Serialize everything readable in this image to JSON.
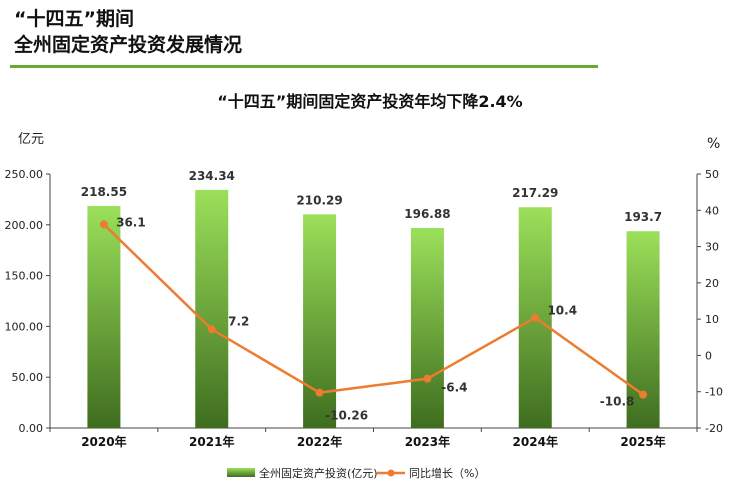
{
  "header": {
    "line1": "“十四五”期间",
    "line2": "全州固定资产投资发展情况"
  },
  "chart_data": {
    "type": "bar",
    "title": "“十四五”期间固定资产投资年均下降2.4%",
    "categories": [
      "2020年",
      "2021年",
      "2022年",
      "2023年",
      "2024年",
      "2025年"
    ],
    "series": [
      {
        "name": "全州固定资产投资(亿元)",
        "type": "bar",
        "axis": "left",
        "values": [
          218.55,
          234.34,
          210.29,
          196.88,
          217.29,
          193.7
        ],
        "labels": [
          "218.55",
          "234.34",
          "210.29",
          "196.88",
          "217.29",
          "193.7"
        ]
      },
      {
        "name": "同比增长（%）",
        "type": "line",
        "axis": "right",
        "values": [
          36.1,
          7.2,
          -10.26,
          -6.4,
          10.4,
          -10.8
        ],
        "labels": [
          "36.1",
          "7.2",
          "-10.26",
          "-6.4",
          "10.4",
          "-10.8"
        ]
      }
    ],
    "y_left": {
      "label": "亿元",
      "min": 0,
      "max": 250,
      "ticks": [
        "0.00",
        "50.00",
        "100.00",
        "150.00",
        "200.00",
        "250.00"
      ]
    },
    "y_right": {
      "label": "%",
      "min": -20,
      "max": 50,
      "ticks": [
        "-20",
        "-10",
        "0",
        "10",
        "20",
        "30",
        "40",
        "50"
      ]
    },
    "legend_position": "bottom",
    "colors": {
      "bar_top": "#9be05a",
      "bar_bottom": "#3f6d1f",
      "line": "#ec7c2f"
    }
  }
}
